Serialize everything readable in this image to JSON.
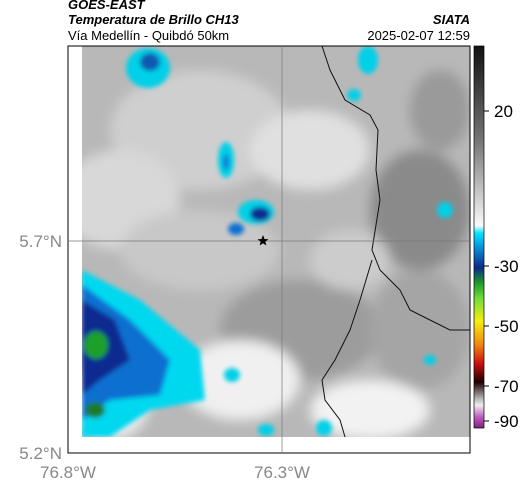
{
  "header": {
    "satellite": "GOES-EAST",
    "product": "Temperatura de Brillo CH13",
    "organization": "SIATA",
    "region": "Vía Medellín - Quibdó 50km",
    "timestamp": "2025-02-07 12:59"
  },
  "axes": {
    "lat_labels": [
      "5.7°N",
      "5.2°N"
    ],
    "lon_labels": [
      "76.8°W",
      "76.3°W"
    ]
  },
  "colorbar": {
    "ticks": [
      20,
      -30,
      -50,
      -70,
      -90
    ]
  }
}
